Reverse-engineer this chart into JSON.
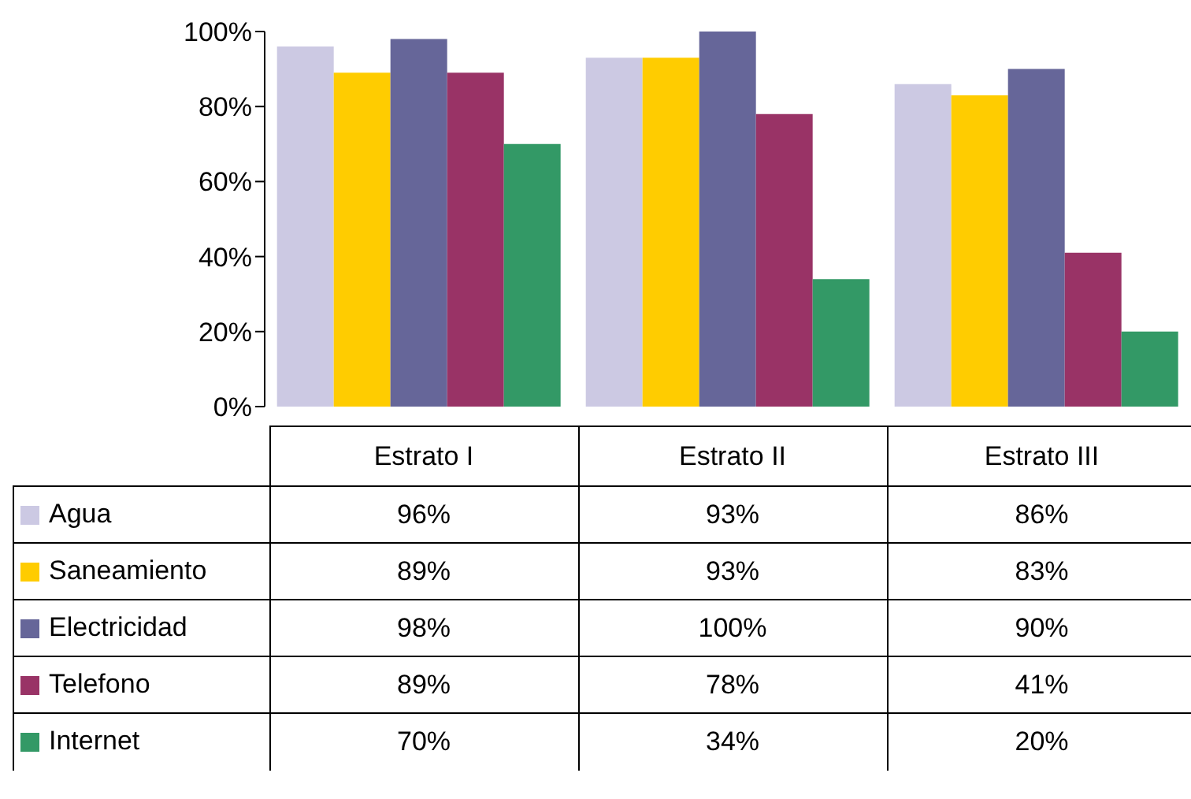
{
  "chart_data": {
    "type": "bar",
    "categories": [
      "Estrato I",
      "Estrato II",
      "Estrato III"
    ],
    "series": [
      {
        "name": "Agua",
        "color": "#ccc9e3",
        "values": [
          96,
          93,
          86
        ],
        "value_labels": [
          "96%",
          "93%",
          "86%"
        ]
      },
      {
        "name": "Saneamiento",
        "color": "#ffcc00",
        "values": [
          89,
          93,
          83
        ],
        "value_labels": [
          "89%",
          "93%",
          "83%"
        ]
      },
      {
        "name": "Electricidad",
        "color": "#666699",
        "values": [
          98,
          100,
          90
        ],
        "value_labels": [
          "98%",
          "100%",
          "90%"
        ]
      },
      {
        "name": "Telefono",
        "color": "#993366",
        "values": [
          89,
          78,
          41
        ],
        "value_labels": [
          "89%",
          "78%",
          "41%"
        ]
      },
      {
        "name": "Internet",
        "color": "#339966",
        "values": [
          70,
          34,
          20
        ],
        "value_labels": [
          "70%",
          "34%",
          "20%"
        ]
      }
    ],
    "ylim": [
      0,
      100
    ],
    "yticks": [
      {
        "value": 0,
        "label": "0%"
      },
      {
        "value": 20,
        "label": "20%"
      },
      {
        "value": 40,
        "label": "40%"
      },
      {
        "value": 60,
        "label": "60%"
      },
      {
        "value": 80,
        "label": "80%"
      },
      {
        "value": 100,
        "label": "100%"
      }
    ],
    "grid": false,
    "legend": "bottom"
  }
}
